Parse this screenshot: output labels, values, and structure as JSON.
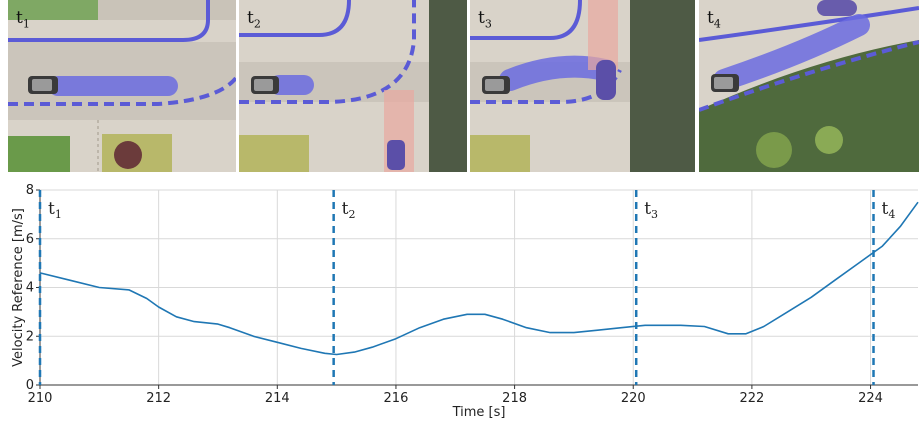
{
  "panels": [
    {
      "label": "t",
      "sub": "1"
    },
    {
      "label": "t",
      "sub": "2"
    },
    {
      "label": "t",
      "sub": "3"
    },
    {
      "label": "t",
      "sub": "4"
    }
  ],
  "colors": {
    "line": "#1f77b4",
    "marker": "#1f77b4",
    "path": "#5b5bd6",
    "road": "#cfc9bf",
    "sidewalk": "#e6e0d6",
    "grass": "#6a9a4a",
    "hazard": "#e8a8a0"
  },
  "chart_data": {
    "type": "line",
    "xlabel": "Time [s]",
    "ylabel": "Velocity Reference [m/s]",
    "xlim": [
      210,
      224.8
    ],
    "ylim": [
      0,
      8
    ],
    "xticks": [
      210,
      212,
      214,
      216,
      218,
      220,
      222,
      224
    ],
    "yticks": [
      0,
      2,
      4,
      6,
      8
    ],
    "grid": true,
    "series": [
      {
        "x": [
          210.0,
          210.5,
          211.0,
          211.5,
          211.8,
          212.0,
          212.3,
          212.6,
          213.0,
          213.2,
          213.6,
          214.0,
          214.4,
          214.8,
          215.0,
          215.3,
          215.6,
          216.0,
          216.4,
          216.8,
          217.2,
          217.5,
          217.8,
          218.2,
          218.6,
          219.0,
          219.4,
          219.8,
          220.2,
          220.5,
          220.8,
          221.2,
          221.6,
          221.9,
          222.2,
          222.6,
          223.0,
          223.4,
          223.8,
          224.2,
          224.5,
          224.8
        ],
        "y": [
          4.6,
          4.3,
          4.0,
          3.9,
          3.55,
          3.2,
          2.8,
          2.6,
          2.5,
          2.35,
          2.0,
          1.75,
          1.5,
          1.3,
          1.25,
          1.35,
          1.55,
          1.9,
          2.35,
          2.7,
          2.9,
          2.9,
          2.7,
          2.35,
          2.15,
          2.15,
          2.25,
          2.35,
          2.45,
          2.45,
          2.45,
          2.4,
          2.1,
          2.1,
          2.4,
          3.0,
          3.6,
          4.3,
          5.0,
          5.7,
          6.5,
          7.5
        ]
      }
    ],
    "markers": [
      {
        "x": 210.0,
        "label": "t",
        "sub": "1"
      },
      {
        "x": 214.95,
        "label": "t",
        "sub": "2"
      },
      {
        "x": 220.05,
        "label": "t",
        "sub": "3"
      },
      {
        "x": 224.05,
        "label": "t",
        "sub": "4"
      }
    ]
  }
}
